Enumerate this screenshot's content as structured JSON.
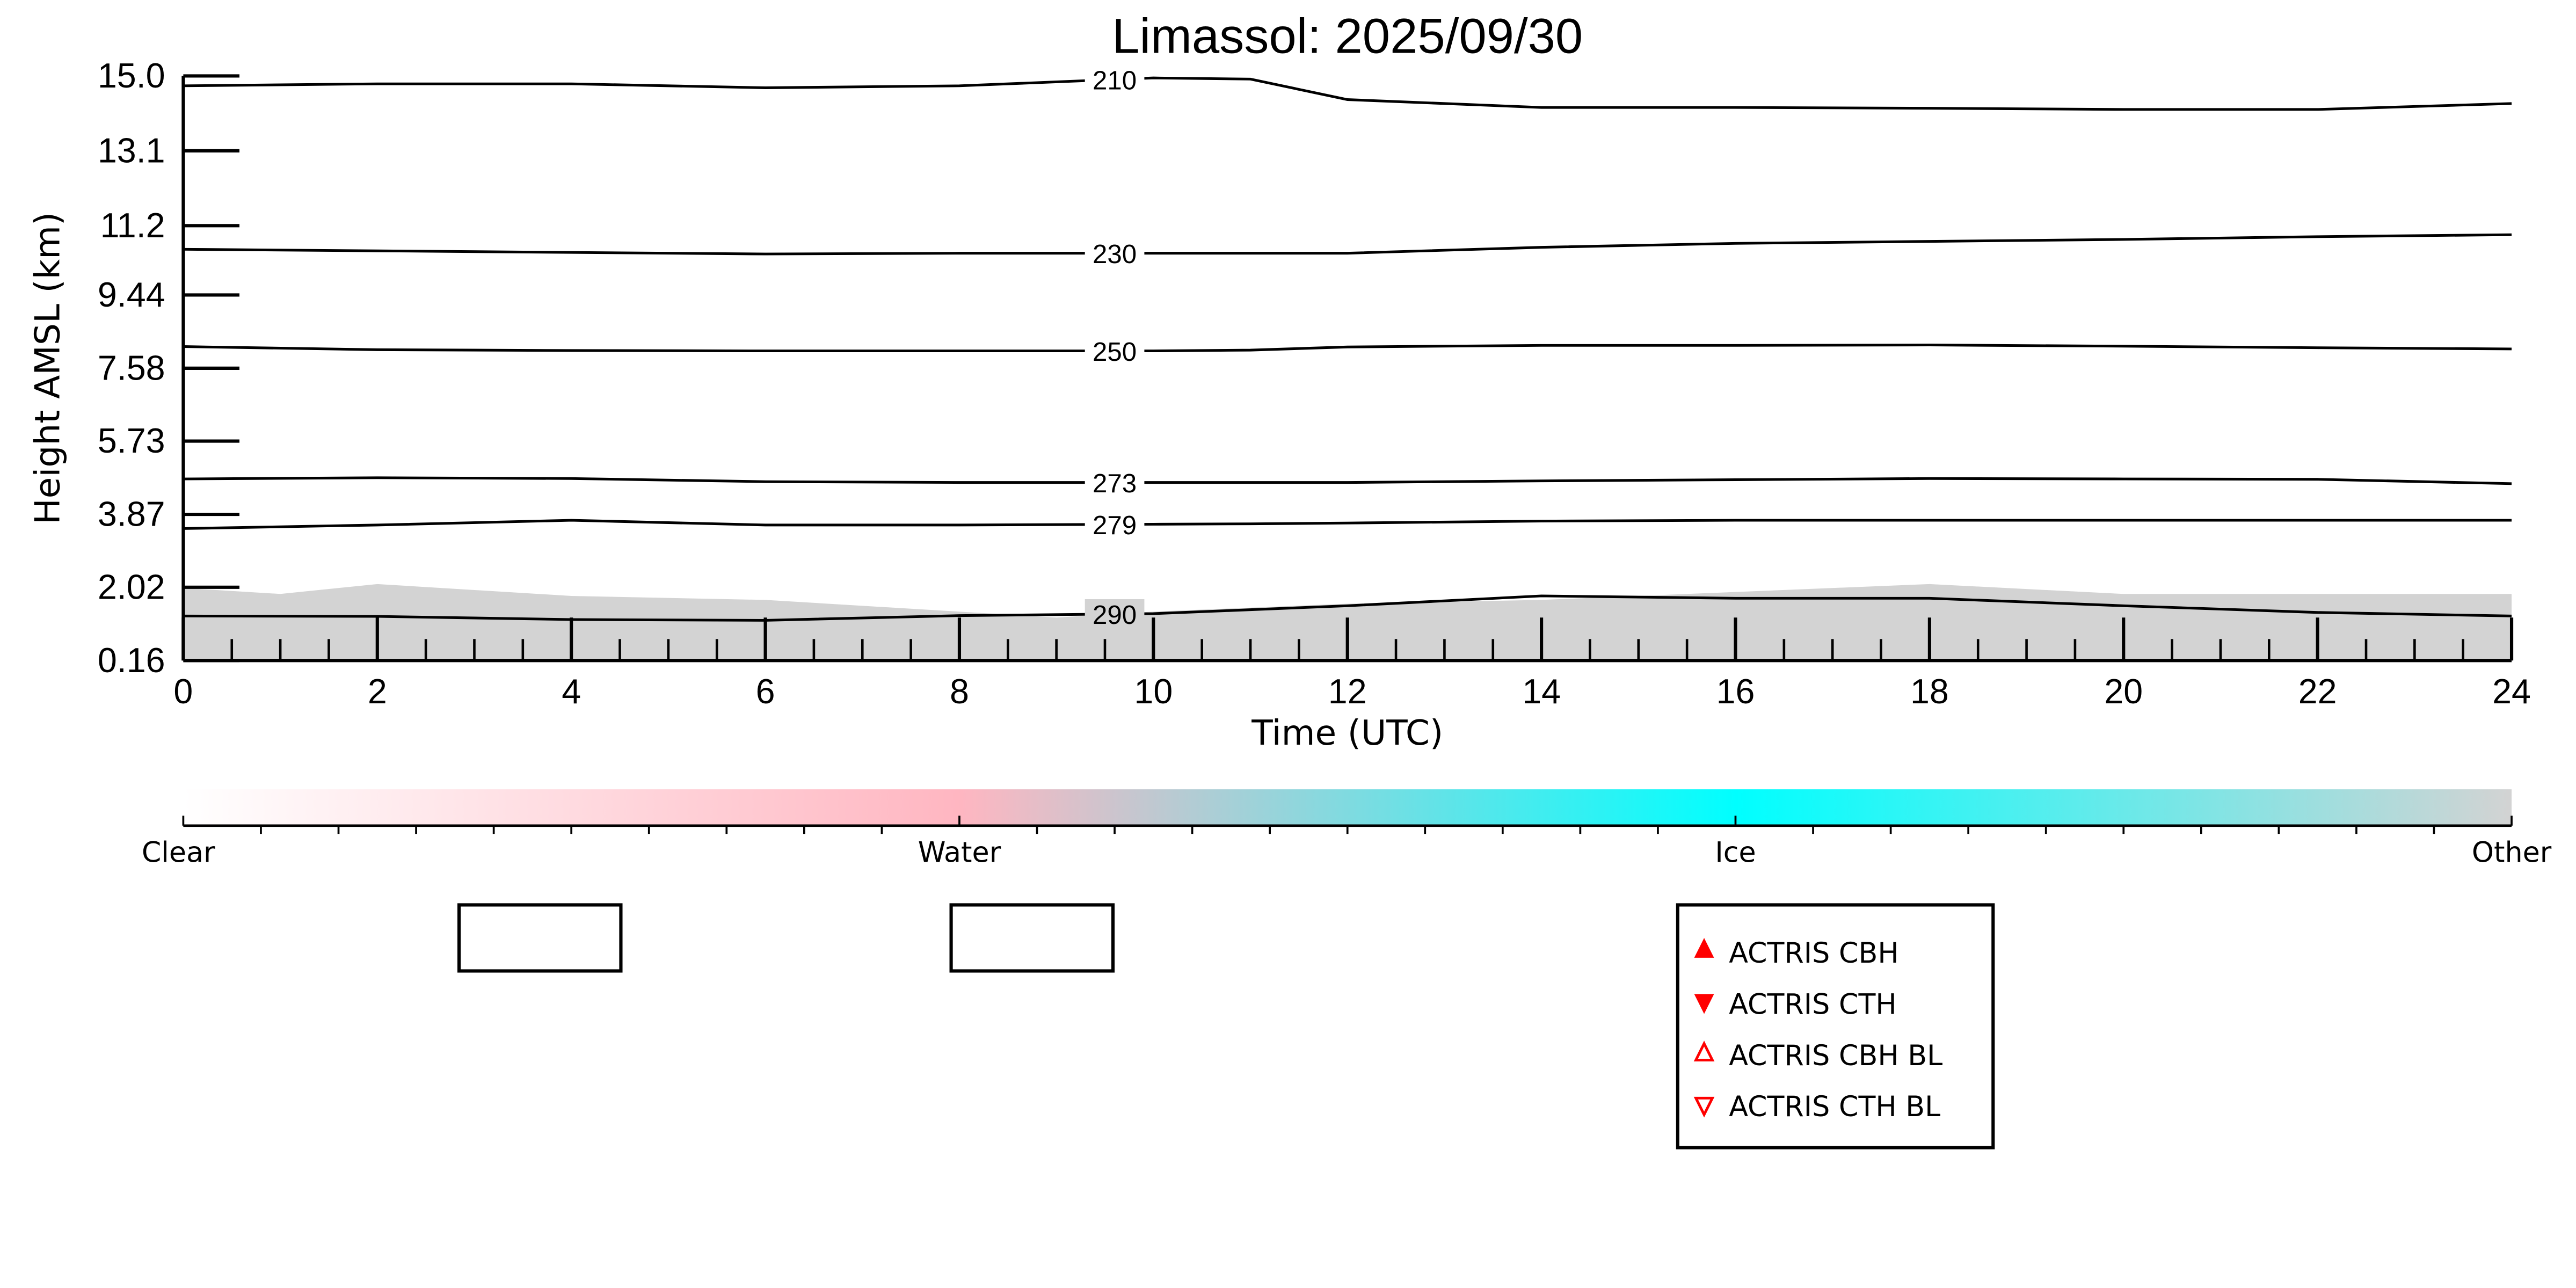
{
  "chart_data": {
    "type": "line",
    "title": "Limassol: 2025/09/30",
    "xlabel": "Time (UTC)",
    "ylabel": "Height AMSL (km)",
    "xlim": [
      0,
      24
    ],
    "ylim": [
      0.16,
      15.0
    ],
    "xticks": [
      "0",
      "2",
      "4",
      "6",
      "8",
      "10",
      "12",
      "14",
      "16",
      "18",
      "20",
      "22",
      "24"
    ],
    "yticks": [
      "0.16",
      "2.02",
      "3.87",
      "5.73",
      "7.58",
      "9.44",
      "11.2",
      "13.1",
      "15.0"
    ],
    "ytick_values": [
      0.16,
      2.02,
      3.87,
      5.73,
      7.58,
      9.44,
      11.2,
      13.1,
      15.0
    ],
    "x_hours": [
      0,
      2,
      4,
      6,
      8,
      10,
      11,
      12,
      14,
      16,
      18,
      20,
      22,
      24
    ],
    "isotherms": [
      {
        "label": "210",
        "values": [
          14.75,
          14.8,
          14.8,
          14.7,
          14.75,
          14.95,
          14.92,
          14.4,
          14.2,
          14.2,
          14.18,
          14.15,
          14.15,
          14.3
        ]
      },
      {
        "label": "230",
        "values": [
          10.6,
          10.56,
          10.52,
          10.48,
          10.5,
          10.5,
          10.5,
          10.5,
          10.65,
          10.75,
          10.8,
          10.85,
          10.92,
          10.97
        ]
      },
      {
        "label": "250",
        "values": [
          8.13,
          8.05,
          8.03,
          8.02,
          8.02,
          8.02,
          8.04,
          8.12,
          8.16,
          8.16,
          8.17,
          8.14,
          8.1,
          8.07
        ]
      },
      {
        "label": "273",
        "values": [
          4.77,
          4.8,
          4.78,
          4.7,
          4.68,
          4.68,
          4.68,
          4.68,
          4.72,
          4.75,
          4.78,
          4.77,
          4.76,
          4.65
        ]
      },
      {
        "label": "279",
        "values": [
          3.51,
          3.6,
          3.72,
          3.6,
          3.6,
          3.62,
          3.63,
          3.65,
          3.7,
          3.72,
          3.72,
          3.72,
          3.72,
          3.72
        ]
      },
      {
        "label": "290",
        "values": [
          1.29,
          1.28,
          1.2,
          1.18,
          1.3,
          1.35,
          1.45,
          1.55,
          1.8,
          1.74,
          1.74,
          1.55,
          1.38,
          1.29
        ]
      }
    ],
    "other_top_km": [
      2.0,
      1.85,
      2.1,
      1.8,
      1.7,
      1.4,
      1.25,
      1.4,
      1.6,
      1.7,
      1.9,
      2.1,
      1.85,
      1.85,
      1.85
    ],
    "other_top_hours": [
      0,
      1,
      2,
      4,
      6,
      8,
      9,
      10,
      12,
      14,
      16,
      18,
      20,
      22,
      24
    ],
    "colorbar": {
      "labels": [
        "Clear",
        "Water",
        "Ice",
        "Other"
      ],
      "colors": [
        "#ffffff",
        "#ffb6c1",
        "#00ffff",
        "#d3d3d3"
      ]
    },
    "legend": {
      "placement": "bottom-right",
      "items": [
        {
          "label": "ACTRIS CBH",
          "marker": "triangle-up-filled"
        },
        {
          "label": "ACTRIS CTH",
          "marker": "triangle-down-filled"
        },
        {
          "label": "ACTRIS CBH BL",
          "marker": "triangle-up-open"
        },
        {
          "label": "ACTRIS CTH BL",
          "marker": "triangle-down-open"
        }
      ],
      "marker_color": "#ff0000"
    }
  }
}
